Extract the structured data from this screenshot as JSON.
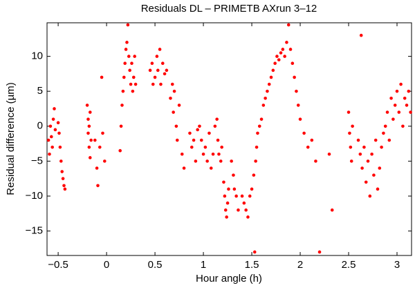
{
  "chart_data": {
    "type": "scatter",
    "title": "Residuals DL – PRIMETB AXrun 3–12",
    "xlabel": "Hour angle (h)",
    "ylabel": "Residual difference (µm)",
    "color": "#ff0000",
    "xlim": [
      -0.615,
      3.15
    ],
    "ylim": [
      -18.5,
      14.8
    ],
    "xticks": [
      {
        "value": -0.5,
        "label": "−0.5"
      },
      0,
      0.5,
      1,
      1.5,
      2,
      2.5,
      3
    ],
    "yticks": [
      {
        "value": -15,
        "label": "−15"
      },
      {
        "value": -10,
        "label": "−10"
      },
      {
        "value": -5,
        "label": "−5"
      },
      0,
      5,
      10
    ],
    "x": [
      -0.6,
      -0.59,
      -0.58,
      -0.57,
      -0.56,
      -0.55,
      -0.54,
      -0.53,
      -0.5,
      -0.49,
      -0.48,
      -0.47,
      -0.46,
      -0.45,
      -0.44,
      -0.43,
      -0.2,
      -0.19,
      -0.19,
      -0.18,
      -0.18,
      -0.17,
      -0.16,
      -0.17,
      -0.12,
      -0.1,
      -0.09,
      -0.07,
      -0.05,
      -0.04,
      -0.02,
      0.14,
      0.15,
      0.16,
      0.17,
      0.18,
      0.19,
      0.2,
      0.21,
      0.22,
      0.23,
      0.24,
      0.25,
      0.26,
      0.27,
      0.28,
      0.29,
      0.3,
      0.45,
      0.47,
      0.48,
      0.5,
      0.52,
      0.53,
      0.55,
      0.56,
      0.58,
      0.6,
      0.62,
      0.66,
      0.68,
      0.69,
      0.7,
      0.72,
      0.73,
      0.75,
      0.78,
      0.8,
      0.86,
      0.88,
      0.9,
      0.92,
      0.94,
      0.96,
      0.98,
      1.0,
      1.02,
      1.04,
      1.06,
      1.08,
      1.1,
      1.12,
      1.14,
      1.15,
      1.16,
      1.18,
      1.19,
      1.21,
      1.22,
      1.23,
      1.24,
      1.25,
      1.26,
      1.29,
      1.31,
      1.32,
      1.34,
      1.36,
      1.4,
      1.42,
      1.44,
      1.46,
      1.48,
      1.5,
      1.52,
      1.54,
      1.55,
      1.56,
      1.58,
      1.53,
      1.6,
      1.62,
      1.64,
      1.66,
      1.68,
      1.7,
      1.72,
      1.74,
      1.76,
      1.78,
      1.8,
      1.82,
      1.84,
      1.86,
      1.88,
      1.9,
      1.92,
      1.94,
      1.96,
      1.98,
      2.0,
      2.04,
      2.08,
      2.12,
      2.16,
      2.2,
      2.3,
      2.33,
      2.5,
      2.51,
      2.52,
      2.53,
      2.54,
      2.6,
      2.62,
      2.64,
      2.63,
      2.66,
      2.68,
      2.7,
      2.72,
      2.74,
      2.76,
      2.78,
      2.8,
      2.82,
      2.84,
      2.86,
      2.88,
      2.9,
      2.92,
      2.94,
      2.96,
      2.98,
      3.0,
      3.02,
      3.04,
      3.06,
      3.08,
      3.1,
      3.12,
      3.14
    ],
    "values": [
      -2,
      -4,
      0,
      -1.5,
      -3,
      1,
      2.5,
      -0.5,
      0.5,
      -1,
      -3,
      -5,
      -6.5,
      -7.5,
      -8.5,
      -9,
      3,
      1,
      -1,
      -3,
      0,
      -4.5,
      -2,
      2,
      -2,
      -6,
      -8.5,
      -3,
      7,
      -1,
      -5,
      -3.5,
      0,
      3,
      5,
      7,
      9,
      11,
      12,
      14.5,
      10,
      8,
      6,
      9,
      5,
      7,
      10,
      6,
      8,
      9,
      6,
      7,
      10,
      8,
      11,
      6,
      9,
      7.5,
      8,
      4,
      6,
      2,
      5,
      0,
      -2,
      3,
      -4,
      -6,
      -1,
      -3,
      -2,
      -5,
      -0.5,
      0,
      -2,
      -4,
      -3,
      -5,
      -1,
      -6,
      -4,
      0,
      1,
      -2,
      -4,
      -5,
      -3,
      -8,
      -10,
      -12,
      -13,
      -11,
      -9,
      -5,
      -7,
      -9,
      -10,
      -12,
      -10,
      -11,
      -12,
      -13,
      -10,
      -9,
      -7,
      -5,
      -3,
      -1,
      0,
      -18,
      1,
      3,
      4,
      5,
      6,
      7,
      8,
      9,
      10,
      9.5,
      10.5,
      11,
      10,
      12,
      14.5,
      11,
      9,
      7,
      5,
      3,
      1,
      -1,
      -3,
      -2,
      -5,
      -18,
      -4,
      -12,
      2,
      -1,
      -3,
      -5,
      0,
      -2,
      -4,
      -6,
      13,
      -3,
      -8,
      -5,
      -10,
      -4,
      -7,
      -2,
      -9,
      -6,
      -3,
      -1,
      0,
      2,
      -2,
      4,
      1,
      3,
      5,
      2,
      6,
      0,
      4,
      3,
      5,
      2
    ]
  }
}
